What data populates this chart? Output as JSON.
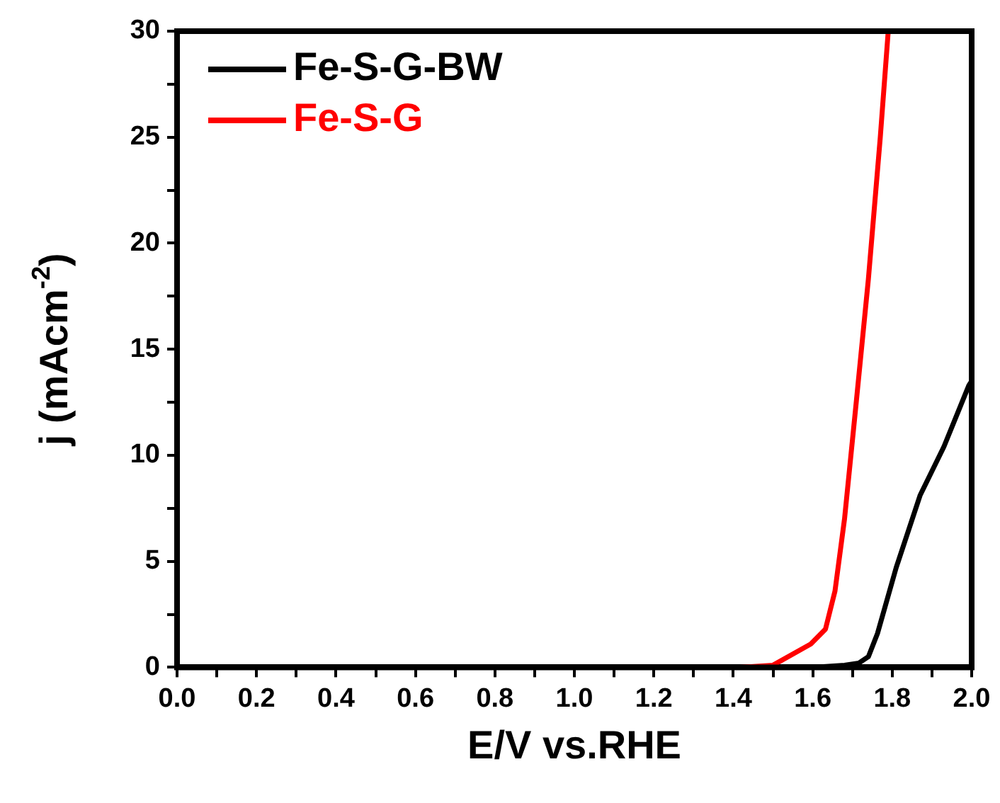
{
  "chart_data": {
    "type": "line",
    "xlabel": "E/V vs.RHE",
    "ylabel": "j (mAcm$^{-2}$)",
    "xlim": [
      0,
      2
    ],
    "ylim": [
      0,
      30
    ],
    "xticks": [
      {
        "value": 0,
        "label": "0.0"
      },
      {
        "value": 0.1,
        "label": null
      },
      {
        "value": 0.2,
        "label": "0.2"
      },
      {
        "value": 0.3,
        "label": null
      },
      {
        "value": 0.4,
        "label": "0.4"
      },
      {
        "value": 0.5,
        "label": null
      },
      {
        "value": 0.6,
        "label": "0.6"
      },
      {
        "value": 0.7,
        "label": null
      },
      {
        "value": 0.8,
        "label": "0.8"
      },
      {
        "value": 0.9,
        "label": null
      },
      {
        "value": 1,
        "label": "1.0"
      },
      {
        "value": 1.1,
        "label": null
      },
      {
        "value": 1.2,
        "label": "1.2"
      },
      {
        "value": 1.3,
        "label": null
      },
      {
        "value": 1.4,
        "label": "1.4"
      },
      {
        "value": 1.5,
        "label": null
      },
      {
        "value": 1.6,
        "label": "1.6"
      },
      {
        "value": 1.7,
        "label": null
      },
      {
        "value": 1.8,
        "label": "1.8"
      },
      {
        "value": 1.9,
        "label": null
      },
      {
        "value": 2,
        "label": "2.0"
      }
    ],
    "yticks": [
      0,
      {
        "value": 2.5,
        "label": null
      },
      5,
      {
        "value": 7.5,
        "label": null
      },
      10,
      {
        "value": 12.5,
        "label": null
      },
      15,
      {
        "value": 17.5,
        "label": null
      },
      20,
      {
        "value": 22.5,
        "label": null
      },
      25,
      {
        "value": 27.5,
        "label": null
      },
      30
    ],
    "legend": "top left",
    "grid": false,
    "marker": "none",
    "line_style": "solid",
    "series": [
      {
        "name": "Fe-S-G-BW",
        "color": "#000000",
        "x": [
          1.5,
          1.6,
          1.68,
          1.716,
          1.74,
          1.763,
          1.81,
          1.87,
          1.93,
          1.993,
          2.0
        ],
        "values": [
          0,
          0,
          0.1,
          0.2,
          0.5,
          1.6,
          4.7,
          8.1,
          10.4,
          13.3,
          13.5
        ]
      },
      {
        "name": "Fe-S-G",
        "color": "#ff0000",
        "x": [
          1.416,
          1.5,
          1.595,
          1.632,
          1.656,
          1.68,
          1.71,
          1.74,
          1.77,
          1.79
        ],
        "values": [
          0,
          0.1,
          1.1,
          1.8,
          3.6,
          7.0,
          12.6,
          18.3,
          25.0,
          30
        ]
      }
    ]
  }
}
